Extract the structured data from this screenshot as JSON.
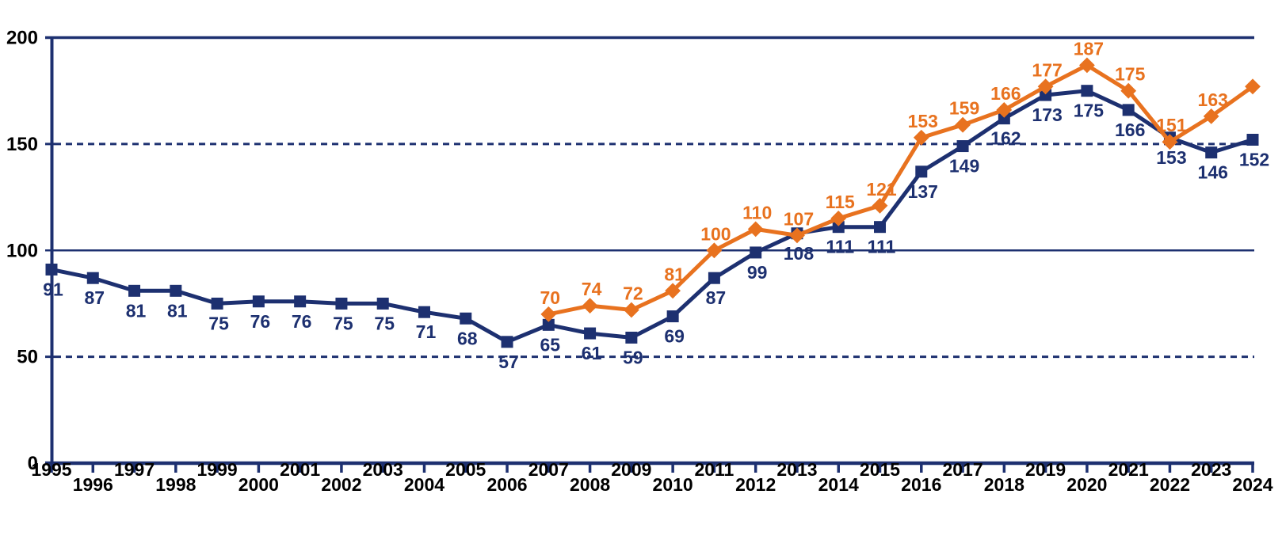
{
  "chart_data": {
    "type": "line",
    "title": "",
    "background_color": "#ffffff",
    "axis_color": "#1d3070",
    "tick_label_color": "#000000",
    "ylim": [
      0,
      200
    ],
    "yticks": [
      0,
      50,
      100,
      150,
      200
    ],
    "solid_gridlines": [
      100,
      200
    ],
    "dashed_gridlines": [
      50,
      150
    ],
    "x_years": [
      1995,
      1996,
      1997,
      1998,
      1999,
      2000,
      2001,
      2002,
      2003,
      2004,
      2005,
      2006,
      2007,
      2008,
      2009,
      2010,
      2011,
      2012,
      2013,
      2014,
      2015,
      2016,
      2017,
      2018,
      2019,
      2020,
      2021,
      2022,
      2023,
      2024
    ],
    "series": [
      {
        "name": "navy-squares",
        "color": "#1d3070",
        "marker": "square",
        "label_position": "below",
        "start_year": 1995,
        "values": [
          91,
          87,
          81,
          81,
          75,
          76,
          76,
          75,
          75,
          71,
          68,
          57,
          65,
          61,
          59,
          69,
          87,
          99,
          108,
          111,
          111,
          137,
          149,
          162,
          173,
          175,
          166,
          153,
          146,
          152
        ],
        "labels": [
          "91",
          "87",
          "81",
          "81",
          "75",
          "76",
          "76",
          "75",
          "75",
          "71",
          "68",
          "57",
          "65",
          "61",
          "59",
          "69",
          "87",
          "99",
          "108",
          "111",
          "111",
          "137",
          "149",
          "162",
          "173",
          "175",
          "166",
          "153",
          "146",
          "152"
        ]
      },
      {
        "name": "orange-diamonds",
        "color": "#e8721f",
        "marker": "diamond",
        "label_position": "above",
        "start_year": 2007,
        "values": [
          70,
          74,
          72,
          81,
          100,
          110,
          107,
          115,
          121,
          153,
          159,
          166,
          177,
          187,
          175,
          151,
          163,
          177
        ],
        "labels": [
          "70",
          "74",
          "72",
          "81",
          "100",
          "110",
          "107",
          "115",
          "121",
          "153",
          "159",
          "166",
          "177",
          "187",
          "175",
          "151",
          "163",
          ""
        ]
      }
    ]
  }
}
